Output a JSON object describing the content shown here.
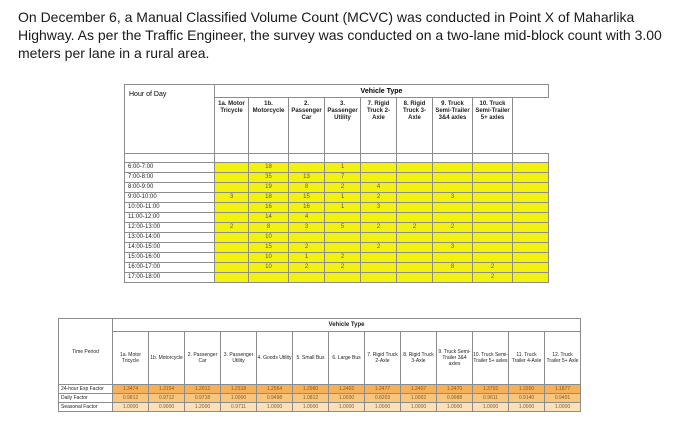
{
  "question": {
    "line1": "On December 6, a Manual Classified Volume Count (MCVC) was conducted in Point X of Maharlika",
    "line2": "Highway. As per the Traffic Engineer, the survey was conducted on a two-lane mid-block count with 3.00",
    "line3": "meters per lane in a rural area."
  },
  "count_table": {
    "vehicle_type_title": "Vehicle Type",
    "hour_header": "Hour of Day",
    "columns": [
      "1a. Motor Tricycle",
      "1b. Motorcycle",
      "2. Passenger Car",
      "3. Passenger Utility",
      "7. Rigid Truck 2-Axle",
      "8. Rigid Truck 3-Axle",
      "9. Truck Semi-Trailer 3&4 axles",
      "10. Truck Semi-Trailer 5+ axles"
    ],
    "rows": [
      {
        "hour": "6:00-7:00",
        "values": [
          "",
          "18",
          "",
          "1",
          "",
          "",
          "",
          ""
        ]
      },
      {
        "hour": "7:00-8:00",
        "values": [
          "",
          "35",
          "13",
          "7",
          "",
          "",
          "",
          ""
        ]
      },
      {
        "hour": "8:00-9:00",
        "values": [
          "",
          "19",
          "8",
          "2",
          "4",
          "",
          "",
          ""
        ]
      },
      {
        "hour": "9:00-10:00",
        "values": [
          "3",
          "18",
          "15",
          "1",
          "2",
          "",
          "3",
          ""
        ]
      },
      {
        "hour": "10:00-11:00",
        "values": [
          "",
          "16",
          "16",
          "1",
          "3",
          "",
          "",
          ""
        ]
      },
      {
        "hour": "11:00-12:00",
        "values": [
          "",
          "14",
          "4",
          "",
          "",
          "",
          "",
          ""
        ]
      },
      {
        "hour": "12:00-13:00",
        "values": [
          "2",
          "8",
          "3",
          "5",
          "2",
          "2",
          "2",
          ""
        ]
      },
      {
        "hour": "13:00-14:00",
        "values": [
          "",
          "10",
          "",
          "",
          "",
          "",
          "",
          ""
        ]
      },
      {
        "hour": "14:00-15:00",
        "values": [
          "",
          "15",
          "2",
          "",
          "2",
          "",
          "3",
          ""
        ]
      },
      {
        "hour": "15:00-16:00",
        "values": [
          "",
          "10",
          "1",
          "2",
          "",
          "",
          "",
          ""
        ]
      },
      {
        "hour": "16:00-17:00",
        "values": [
          "",
          "10",
          "2",
          "2",
          "",
          "",
          "8",
          "2"
        ]
      },
      {
        "hour": "17:00-18:00",
        "values": [
          "",
          "",
          "",
          "",
          "",
          "",
          "",
          "2"
        ]
      }
    ]
  },
  "factor_table": {
    "vehicle_type_title": "Vehicle Type",
    "period_header": "Time Period",
    "columns": [
      "1a. Motor Tricycle",
      "1b. Motorcycle",
      "2. Passenger Car",
      "3. Passenger Utility",
      "4. Goods Utility",
      "5. Small Bus",
      "6. Large Bus",
      "7. Rigid Truck 2-Axle",
      "8. Rigid Truck 3-Axle",
      "9. Truck Semi-Trailer 3&4 axles",
      "10. Truck Semi-Trailer 5+ axles",
      "11. Truck Trailer 4-Axle",
      "12. Truck Trailer 5+ Axle"
    ],
    "rows": [
      {
        "label": "24-hour Exp Factor",
        "values": [
          "1.3474",
          "1.3154",
          "1.2012",
          "1.2318",
          "1.2564",
          "1.2980",
          "1.2402",
          "1.2477",
          "1.2407",
          "1.2470",
          "1.3702",
          "1.3350",
          "1.1877"
        ]
      },
      {
        "label": "Daily Factor",
        "values": [
          "0.9812",
          "0.9712",
          "0.9718",
          "1.0000",
          "0.9498",
          "1.0812",
          "1.0030",
          "0.8203",
          "1.0002",
          "0.9988",
          "0.9611",
          "0.9140",
          "0.9401"
        ]
      },
      {
        "label": "Seasonal Factor",
        "values": [
          "1.0000",
          "0.9000",
          "1.2000",
          "0.9711",
          "1.0000",
          "1.0000",
          "1.0000",
          "1.0000",
          "1.0000",
          "1.0000",
          "1.0000",
          "1.0000",
          "1.0000"
        ]
      }
    ]
  }
}
